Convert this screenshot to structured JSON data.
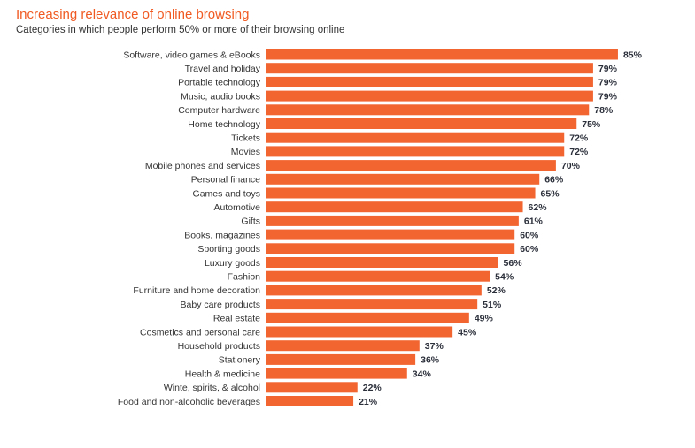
{
  "title": "Increasing relevance of online browsing",
  "subtitle": "Categories in which people perform 50% or more of their browsing online",
  "bar_color": "#f26531",
  "title_color": "#f05a22",
  "chart_data": {
    "type": "bar",
    "orientation": "horizontal",
    "categories": [
      "Software, video games & eBooks",
      "Travel and holiday",
      "Portable technology",
      "Music, audio books",
      "Computer hardware",
      "Home technology",
      "Tickets",
      "Movies",
      "Mobile phones and services",
      "Personal finance",
      "Games and toys",
      "Automotive",
      "Gifts",
      "Books, magazines",
      "Sporting goods",
      "Luxury goods",
      "Fashion",
      "Furniture and home decoration",
      "Baby care products",
      "Real estate",
      "Cosmetics and personal care",
      "Household products",
      "Stationery",
      "Health & medicine",
      "Winte, spirits, & alcohol",
      "Food and non-alcoholic beverages"
    ],
    "values": [
      85,
      79,
      79,
      79,
      78,
      75,
      72,
      72,
      70,
      66,
      65,
      62,
      61,
      60,
      60,
      56,
      54,
      52,
      51,
      49,
      45,
      37,
      36,
      34,
      22,
      21
    ],
    "value_labels": [
      "85%",
      "79%",
      "79%",
      "79%",
      "78%",
      "75%",
      "72%",
      "72%",
      "70%",
      "66%",
      "65%",
      "62%",
      "61%",
      "60%",
      "60%",
      "56%",
      "54%",
      "52%",
      "51%",
      "49%",
      "45%",
      "37%",
      "36%",
      "34%",
      "22%",
      "21%"
    ],
    "xlim": [
      0,
      100
    ],
    "grid": false,
    "legend": "none"
  }
}
